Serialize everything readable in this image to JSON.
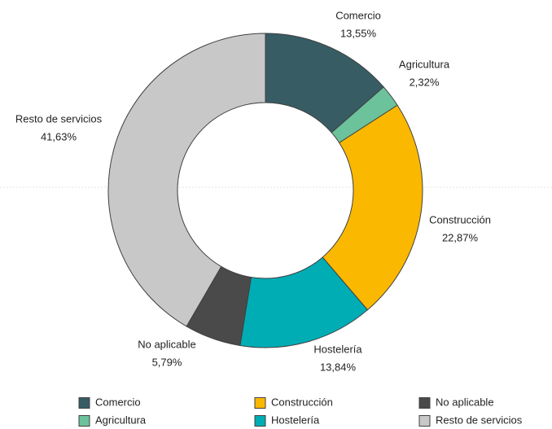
{
  "chart_data": {
    "type": "donut",
    "categories": [
      "Comercio",
      "Agricultura",
      "Construcción",
      "Hostelería",
      "No aplicable",
      "Resto de servicios"
    ],
    "values": [
      13.55,
      2.32,
      22.87,
      13.84,
      5.79,
      41.63
    ],
    "value_labels": [
      "13,55%",
      "2,32%",
      "22,87%",
      "13,84%",
      "5,79%",
      "41,63%"
    ],
    "colors": [
      "#375c64",
      "#6cc29b",
      "#fbb800",
      "#00adb5",
      "#4a4a4a",
      "#c8c8c8"
    ],
    "legend": "bottom"
  }
}
